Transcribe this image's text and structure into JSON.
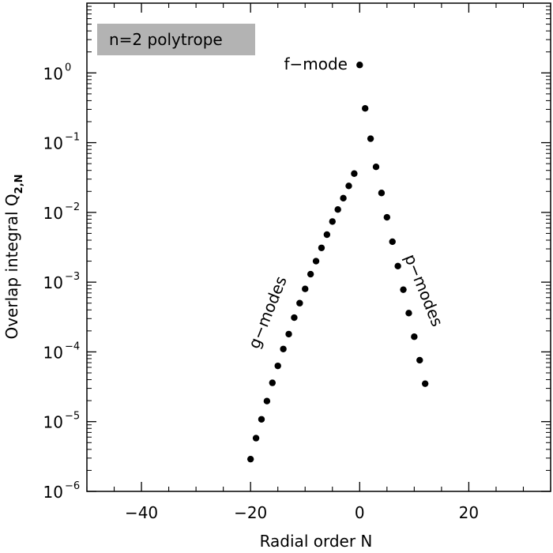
{
  "chart_data": {
    "type": "scatter",
    "title": "",
    "xlabel": "Radial order N",
    "ylabel_main": "Overlap integral Q",
    "ylabel_sub": "2,N",
    "xlim": [
      -50,
      35
    ],
    "ylim": [
      1e-06,
      10
    ],
    "y_scale": "log",
    "grid": false,
    "x_ticks": [
      -40,
      -20,
      0,
      20
    ],
    "x_tick_labels": [
      "−40",
      "−20",
      "0",
      "20"
    ],
    "y_ticks": [
      {
        "value": 1,
        "base": "10",
        "exp": "0"
      },
      {
        "value": 0.1,
        "base": "10",
        "exp": "−1"
      },
      {
        "value": 0.01,
        "base": "10",
        "exp": "−2"
      },
      {
        "value": 0.001,
        "base": "10",
        "exp": "−3"
      },
      {
        "value": 0.0001,
        "base": "10",
        "exp": "−4"
      },
      {
        "value": 1e-05,
        "base": "10",
        "exp": "−5"
      },
      {
        "value": 1e-06,
        "base": "10",
        "exp": "−6"
      }
    ],
    "legend_box": "n=2 polytrope",
    "annotations": {
      "f_mode": "f−mode",
      "g_modes": "g−modes",
      "p_modes": "p−modes"
    },
    "points": {
      "x": [
        -20,
        -19,
        -18,
        -17,
        -16,
        -15,
        -14,
        -13,
        -12,
        -11,
        -10,
        -9,
        -8,
        -7,
        -6,
        -5,
        -4,
        -3,
        -2,
        -1,
        0,
        1,
        2,
        3,
        4,
        5,
        6,
        7,
        8,
        9,
        10,
        11,
        12
      ],
      "y": [
        2.9e-06,
        5.8e-06,
        1.08e-05,
        1.97e-05,
        3.6e-05,
        6.3e-05,
        0.00011,
        0.00018,
        0.00031,
        0.0005,
        0.0008,
        0.0013,
        0.002,
        0.0031,
        0.0048,
        0.0074,
        0.011,
        0.016,
        0.024,
        0.036,
        1.3,
        0.31,
        0.114,
        0.045,
        0.019,
        0.0085,
        0.0038,
        0.0017,
        0.00078,
        0.00036,
        0.000165,
        7.6e-05,
        3.5e-05
      ]
    }
  }
}
